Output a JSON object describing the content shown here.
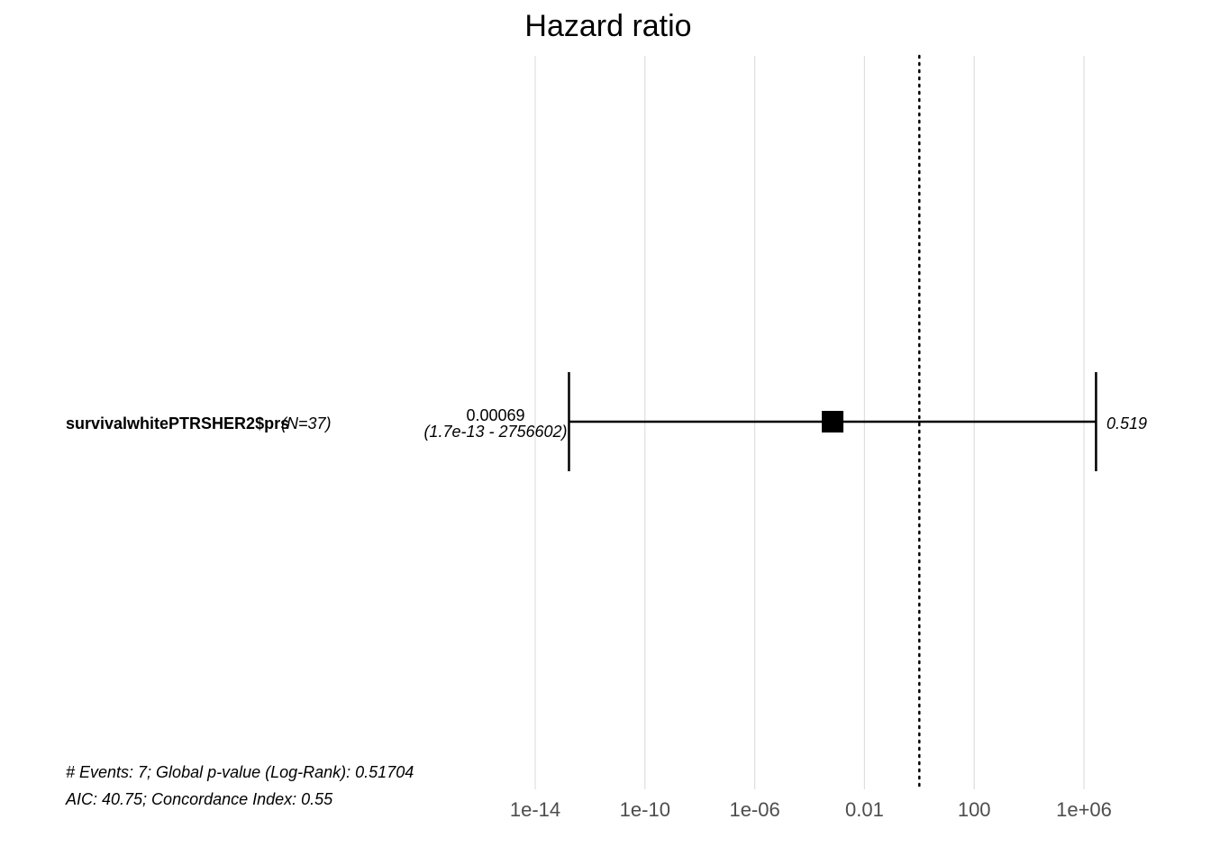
{
  "chart_data": {
    "type": "forest",
    "title": "Hazard ratio",
    "x_scale": "log10",
    "xlim": [
      1e-15,
      100000000.0
    ],
    "ticks": [
      {
        "value": 1e-14,
        "label": "1e-14"
      },
      {
        "value": 1e-10,
        "label": "1e-10"
      },
      {
        "value": 1e-06,
        "label": "1e-06"
      },
      {
        "value": 0.01,
        "label": "0.01"
      },
      {
        "value": 100,
        "label": "100"
      },
      {
        "value": 1000000.0,
        "label": "1e+06"
      }
    ],
    "reference_line": 1,
    "grid": true,
    "rows": [
      {
        "variable": "survivalwhitePTRSHER2$prs",
        "n_label": "(N=37)",
        "hr": 0.00069,
        "ci_low": 1.7e-13,
        "ci_high": 2756602,
        "hr_label": "0.00069",
        "ci_label": "(1.7e-13 - 2756602)",
        "p_label": "0.519"
      }
    ],
    "footnote": [
      "# Events: 7; Global p-value (Log-Rank): 0.51704",
      "AIC: 40.75; Concordance Index: 0.55"
    ]
  },
  "colors": {
    "grid": "#dedede",
    "tick_text": "#4d4d4d",
    "mark": "#000000"
  }
}
